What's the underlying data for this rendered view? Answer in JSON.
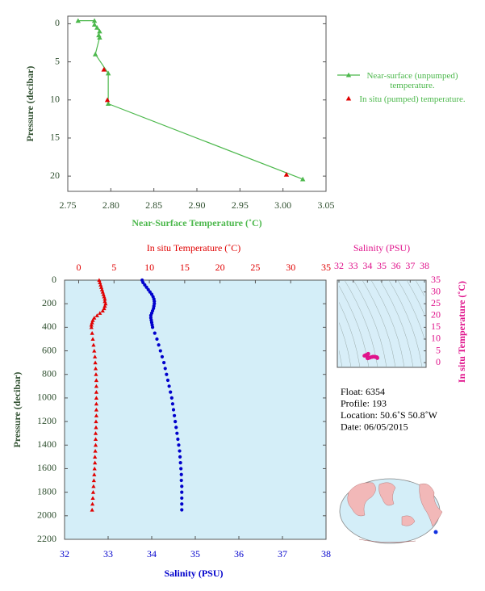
{
  "chart_data": [
    {
      "type": "line",
      "x_label": "Near-Surface Temperature (˚C)",
      "y_label": "Pressure (decibar)",
      "xlim": [
        2.75,
        3.05
      ],
      "xticks": [
        2.75,
        {
          "value": 2.8,
          "label": "2.80"
        },
        2.85,
        {
          "value": 2.9,
          "label": "2.90"
        },
        2.95,
        {
          "value": 3.0,
          "label": "3.00"
        },
        3.05
      ],
      "ylim": [
        -1,
        22
      ],
      "y_inverted": true,
      "yticks": [
        0,
        5,
        10,
        15,
        20
      ],
      "legend": "right",
      "series": [
        {
          "name": "Near-surface (unpumped) temperature.",
          "color": "#4cb84c",
          "line": true,
          "x": [
            2.762,
            2.781,
            2.781,
            2.784,
            2.787,
            2.786,
            2.787,
            2.782,
            2.797,
            2.797,
            3.023
          ],
          "y": [
            -0.4,
            -0.4,
            0.1,
            0.5,
            1.0,
            1.5,
            1.8,
            4.0,
            6.5,
            10.5,
            20.4
          ]
        },
        {
          "name": "In situ (pumped) temperature.",
          "color": "#e00000",
          "line": false,
          "x": [
            2.792,
            2.796,
            3.004
          ],
          "y": [
            6.0,
            10.0,
            19.8
          ]
        }
      ]
    },
    {
      "type": "profile",
      "y_label": "Pressure (decibar)",
      "ylim": [
        0,
        2200
      ],
      "y_inverted": true,
      "yticks": [
        0,
        200,
        400,
        600,
        800,
        1000,
        1200,
        1400,
        1600,
        1800,
        2000,
        2200
      ],
      "pressure": [
        0,
        20,
        40,
        60,
        80,
        100,
        120,
        140,
        160,
        180,
        200,
        220,
        240,
        260,
        280,
        300,
        320,
        340,
        360,
        380,
        400,
        450,
        500,
        550,
        600,
        650,
        700,
        750,
        800,
        850,
        900,
        950,
        1000,
        1050,
        1100,
        1150,
        1200,
        1250,
        1300,
        1350,
        1400,
        1450,
        1500,
        1550,
        1600,
        1650,
        1700,
        1750,
        1800,
        1850,
        1900,
        1950
      ],
      "temperature": {
        "axis_label": "In situ Temperature (˚C)",
        "color": "#e00000",
        "lim": [
          -2,
          35
        ],
        "ticks": [
          0,
          5,
          10,
          15,
          20,
          25,
          30,
          35
        ],
        "values": [
          2.9,
          3.0,
          3.1,
          3.2,
          3.3,
          3.4,
          3.5,
          3.6,
          3.7,
          3.7,
          3.8,
          3.7,
          3.6,
          3.4,
          3.0,
          2.6,
          2.2,
          2.0,
          1.9,
          1.8,
          1.8,
          1.9,
          2.0,
          2.1,
          2.2,
          2.3,
          2.35,
          2.4,
          2.45,
          2.5,
          2.5,
          2.5,
          2.5,
          2.5,
          2.5,
          2.5,
          2.45,
          2.45,
          2.4,
          2.4,
          2.4,
          2.35,
          2.3,
          2.3,
          2.25,
          2.2,
          2.15,
          2.1,
          2.05,
          2.0,
          1.95,
          1.9
        ]
      },
      "salinity": {
        "axis_label": "Salinity (PSU)",
        "color": "#0000cc",
        "lim": [
          32,
          38
        ],
        "ticks": [
          32,
          33,
          34,
          35,
          36,
          37,
          38
        ],
        "values": [
          33.78,
          33.8,
          33.84,
          33.88,
          33.92,
          33.96,
          34.0,
          34.03,
          34.05,
          34.06,
          34.06,
          34.05,
          34.04,
          34.02,
          34.0,
          33.98,
          33.98,
          33.99,
          34.0,
          34.01,
          34.02,
          34.07,
          34.12,
          34.16,
          34.2,
          34.24,
          34.28,
          34.31,
          34.34,
          34.37,
          34.4,
          34.43,
          34.46,
          34.48,
          34.5,
          34.52,
          34.54,
          34.56,
          34.58,
          34.6,
          34.62,
          34.64,
          34.65,
          34.66,
          34.67,
          34.68,
          34.68,
          34.69,
          34.69,
          34.69,
          34.69,
          34.69
        ]
      }
    },
    {
      "type": "ts",
      "color": "#e0148c",
      "x_label": "Salinity (PSU)",
      "xlim": [
        32,
        38
      ],
      "xticks": [
        32,
        33,
        34,
        35,
        36,
        37,
        38
      ],
      "y_label": "In situ Temperature (˚C)",
      "ylim": [
        -2,
        35
      ],
      "yticks": [
        0,
        5,
        10,
        15,
        20,
        25,
        30,
        35
      ]
    }
  ],
  "float_info": [
    "Float:  6354",
    "Profile:  193",
    "Location:  50.6˚S  50.8˚W",
    "Date:  06/05/2015"
  ]
}
